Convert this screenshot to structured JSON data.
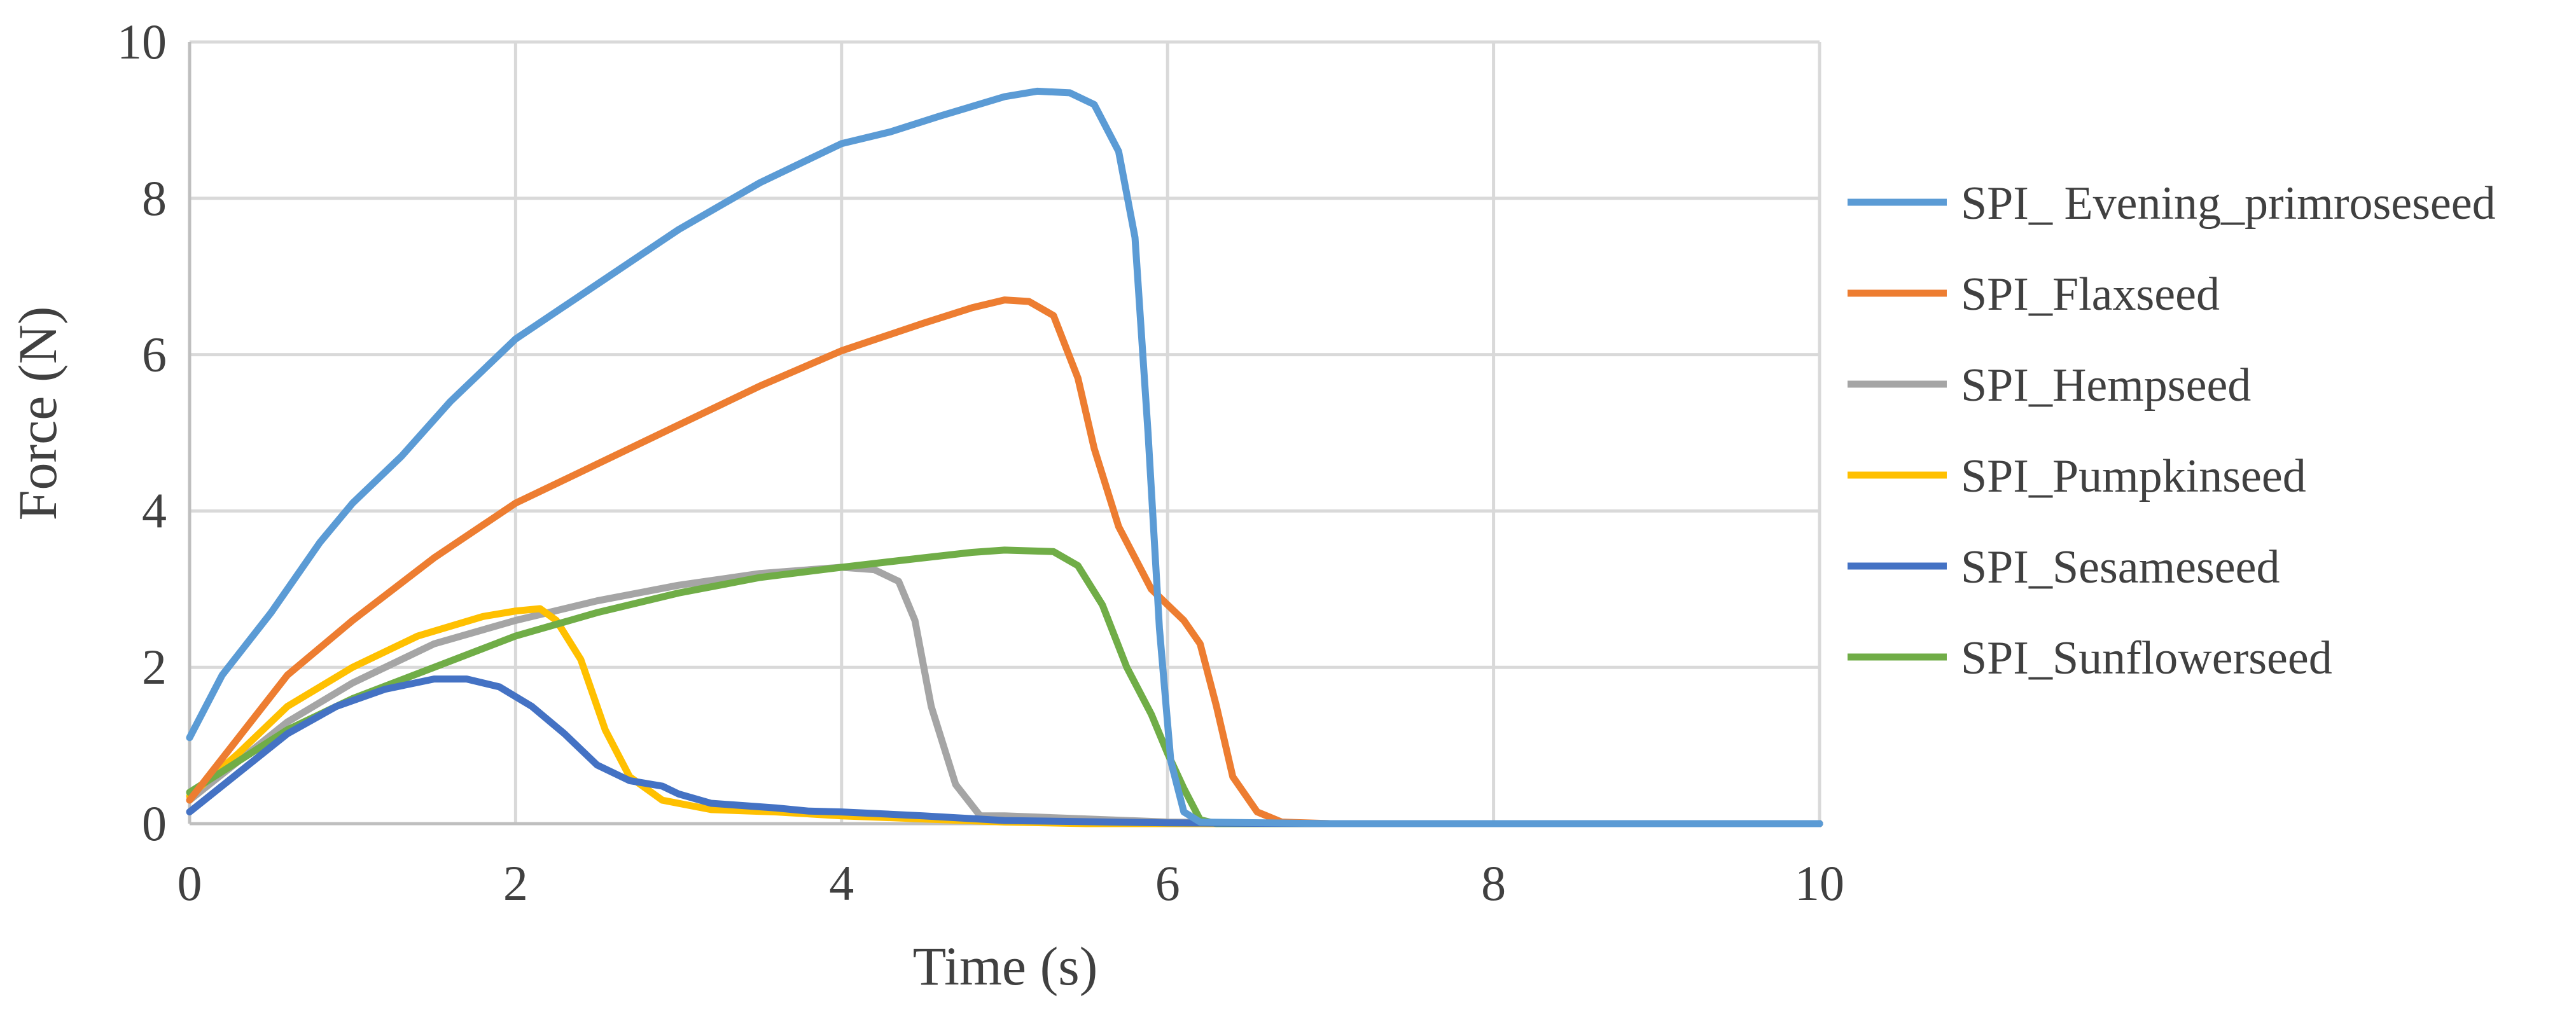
{
  "chart_data": {
    "type": "line",
    "title": "",
    "xlabel": "Time (s)",
    "ylabel": "Force (N)",
    "xlim": [
      0,
      10
    ],
    "ylim": [
      0,
      10
    ],
    "xticks": [
      0,
      2,
      4,
      6,
      8,
      10
    ],
    "yticks": [
      0,
      2,
      4,
      6,
      8,
      10
    ],
    "grid": true,
    "legend": "right",
    "series": [
      {
        "name": "SPI_ Evening_primroseseed",
        "color": "#5b9bd5",
        "points": [
          [
            0,
            1.1
          ],
          [
            0.2,
            1.9
          ],
          [
            0.5,
            2.7
          ],
          [
            0.8,
            3.6
          ],
          [
            1.0,
            4.1
          ],
          [
            1.3,
            4.7
          ],
          [
            1.6,
            5.4
          ],
          [
            2.0,
            6.2
          ],
          [
            2.5,
            6.9
          ],
          [
            3.0,
            7.6
          ],
          [
            3.5,
            8.2
          ],
          [
            4.0,
            8.7
          ],
          [
            4.3,
            8.85
          ],
          [
            4.6,
            9.05
          ],
          [
            5.0,
            9.3
          ],
          [
            5.2,
            9.37
          ],
          [
            5.4,
            9.35
          ],
          [
            5.55,
            9.2
          ],
          [
            5.7,
            8.6
          ],
          [
            5.8,
            7.5
          ],
          [
            5.88,
            5.0
          ],
          [
            5.95,
            2.5
          ],
          [
            6.02,
            0.8
          ],
          [
            6.1,
            0.15
          ],
          [
            6.2,
            0.02
          ],
          [
            7,
            0
          ],
          [
            10,
            0
          ]
        ]
      },
      {
        "name": "SPI_Flaxseed",
        "color": "#ed7d31",
        "points": [
          [
            0,
            0.3
          ],
          [
            0.3,
            1.1
          ],
          [
            0.6,
            1.9
          ],
          [
            1.0,
            2.6
          ],
          [
            1.5,
            3.4
          ],
          [
            2.0,
            4.1
          ],
          [
            2.5,
            4.6
          ],
          [
            3.0,
            5.1
          ],
          [
            3.5,
            5.6
          ],
          [
            4.0,
            6.05
          ],
          [
            4.5,
            6.4
          ],
          [
            4.8,
            6.6
          ],
          [
            5.0,
            6.7
          ],
          [
            5.15,
            6.68
          ],
          [
            5.3,
            6.5
          ],
          [
            5.45,
            5.7
          ],
          [
            5.55,
            4.8
          ],
          [
            5.7,
            3.8
          ],
          [
            5.9,
            3.0
          ],
          [
            6.1,
            2.6
          ],
          [
            6.2,
            2.3
          ],
          [
            6.3,
            1.5
          ],
          [
            6.4,
            0.6
          ],
          [
            6.55,
            0.15
          ],
          [
            6.7,
            0.02
          ],
          [
            7,
            0
          ],
          [
            10,
            0
          ]
        ]
      },
      {
        "name": "SPI_Hempseed",
        "color": "#a5a5a5",
        "points": [
          [
            0,
            0.3
          ],
          [
            0.3,
            0.8
          ],
          [
            0.6,
            1.3
          ],
          [
            1.0,
            1.8
          ],
          [
            1.5,
            2.3
          ],
          [
            2.0,
            2.6
          ],
          [
            2.5,
            2.85
          ],
          [
            3.0,
            3.05
          ],
          [
            3.5,
            3.2
          ],
          [
            4.0,
            3.28
          ],
          [
            4.2,
            3.25
          ],
          [
            4.35,
            3.1
          ],
          [
            4.45,
            2.6
          ],
          [
            4.55,
            1.5
          ],
          [
            4.7,
            0.5
          ],
          [
            4.85,
            0.1
          ],
          [
            5.0,
            0.1
          ],
          [
            5.5,
            0.06
          ],
          [
            6.0,
            0.02
          ],
          [
            7,
            0
          ],
          [
            10,
            0
          ]
        ]
      },
      {
        "name": "SPI_Pumpkinseed",
        "color": "#ffc000",
        "points": [
          [
            0,
            0.35
          ],
          [
            0.3,
            0.9
          ],
          [
            0.6,
            1.5
          ],
          [
            1.0,
            2.0
          ],
          [
            1.4,
            2.4
          ],
          [
            1.8,
            2.65
          ],
          [
            2.0,
            2.72
          ],
          [
            2.15,
            2.75
          ],
          [
            2.25,
            2.6
          ],
          [
            2.4,
            2.1
          ],
          [
            2.55,
            1.2
          ],
          [
            2.7,
            0.6
          ],
          [
            2.9,
            0.3
          ],
          [
            3.2,
            0.18
          ],
          [
            3.6,
            0.15
          ],
          [
            4.0,
            0.1
          ],
          [
            4.5,
            0.06
          ],
          [
            5.0,
            0.02
          ],
          [
            5.5,
            0
          ],
          [
            10,
            0
          ]
        ]
      },
      {
        "name": "SPI_Sesameseed",
        "color": "#4472c4",
        "points": [
          [
            0,
            0.15
          ],
          [
            0.3,
            0.65
          ],
          [
            0.6,
            1.15
          ],
          [
            0.9,
            1.5
          ],
          [
            1.2,
            1.72
          ],
          [
            1.5,
            1.85
          ],
          [
            1.7,
            1.85
          ],
          [
            1.9,
            1.75
          ],
          [
            2.1,
            1.5
          ],
          [
            2.3,
            1.15
          ],
          [
            2.5,
            0.75
          ],
          [
            2.7,
            0.55
          ],
          [
            2.9,
            0.48
          ],
          [
            3.0,
            0.38
          ],
          [
            3.2,
            0.26
          ],
          [
            3.6,
            0.2
          ],
          [
            3.8,
            0.16
          ],
          [
            4.0,
            0.15
          ],
          [
            4.5,
            0.1
          ],
          [
            5.0,
            0.04
          ],
          [
            6,
            0.01
          ],
          [
            7,
            0
          ],
          [
            10,
            0
          ]
        ]
      },
      {
        "name": "SPI_Sunflowerseed",
        "color": "#70ad47",
        "points": [
          [
            0,
            0.4
          ],
          [
            0.3,
            0.8
          ],
          [
            0.6,
            1.2
          ],
          [
            1.0,
            1.6
          ],
          [
            1.5,
            2.0
          ],
          [
            2.0,
            2.4
          ],
          [
            2.5,
            2.7
          ],
          [
            3.0,
            2.95
          ],
          [
            3.5,
            3.15
          ],
          [
            4.0,
            3.28
          ],
          [
            4.5,
            3.4
          ],
          [
            4.8,
            3.47
          ],
          [
            5.0,
            3.5
          ],
          [
            5.3,
            3.48
          ],
          [
            5.45,
            3.3
          ],
          [
            5.6,
            2.8
          ],
          [
            5.75,
            2.0
          ],
          [
            5.9,
            1.4
          ],
          [
            6.0,
            0.9
          ],
          [
            6.1,
            0.45
          ],
          [
            6.2,
            0.05
          ],
          [
            6.3,
            0
          ],
          [
            10,
            0
          ]
        ]
      }
    ]
  }
}
